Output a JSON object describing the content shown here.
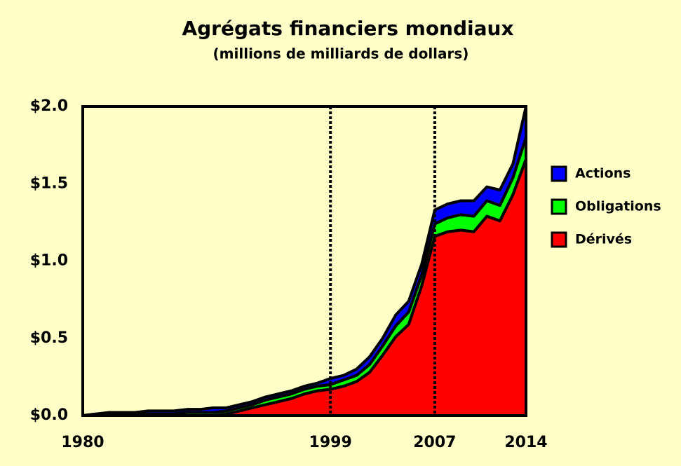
{
  "chart_data": {
    "type": "stacked-area",
    "title": "Agrégats financiers mondiaux",
    "subtitle": "(millions de milliards de dollars)",
    "x": [
      1980,
      1981,
      1982,
      1983,
      1984,
      1985,
      1986,
      1987,
      1988,
      1989,
      1990,
      1991,
      1992,
      1993,
      1994,
      1995,
      1996,
      1997,
      1998,
      1999,
      2000,
      2001,
      2002,
      2003,
      2004,
      2005,
      2006,
      2007,
      2008,
      2009,
      2010,
      2011,
      2012,
      2013,
      2014
    ],
    "series": [
      {
        "name": "Dérivés",
        "color": "#ff0000",
        "values": [
          0,
          0,
          0,
          0,
          0,
          0,
          0,
          0,
          0,
          0,
          0,
          0.01,
          0.03,
          0.05,
          0.07,
          0.09,
          0.11,
          0.14,
          0.16,
          0.17,
          0.19,
          0.22,
          0.28,
          0.39,
          0.51,
          0.59,
          0.84,
          1.16,
          1.19,
          1.2,
          1.19,
          1.29,
          1.26,
          1.43,
          1.66
        ]
      },
      {
        "name": "Obligations",
        "color": "#00ff00",
        "values": [
          0,
          0.01,
          0.01,
          0.01,
          0.01,
          0.01,
          0.01,
          0.01,
          0.02,
          0.02,
          0.02,
          0.02,
          0.02,
          0.02,
          0.03,
          0.03,
          0.03,
          0.03,
          0.03,
          0.03,
          0.04,
          0.04,
          0.05,
          0.06,
          0.07,
          0.08,
          0.07,
          0.08,
          0.09,
          0.1,
          0.1,
          0.1,
          0.1,
          0.11,
          0.14
        ]
      },
      {
        "name": "Actions",
        "color": "#0000ff",
        "values": [
          0,
          0,
          0.01,
          0.01,
          0.01,
          0.02,
          0.02,
          0.02,
          0.02,
          0.02,
          0.03,
          0.02,
          0.02,
          0.02,
          0.02,
          0.02,
          0.02,
          0.02,
          0.02,
          0.04,
          0.03,
          0.04,
          0.05,
          0.05,
          0.07,
          0.07,
          0.07,
          0.09,
          0.09,
          0.09,
          0.1,
          0.09,
          0.1,
          0.09,
          0.2
        ]
      }
    ],
    "xlim": [
      1980,
      2014
    ],
    "xticks": [
      1980,
      1999,
      2007,
      2014
    ],
    "ylim": [
      0,
      2
    ],
    "yticks": [
      {
        "value": 0,
        "label": "$0.0"
      },
      {
        "value": 0.5,
        "label": "$0.5"
      },
      {
        "value": 1,
        "label": "$1.0"
      },
      {
        "value": 1.5,
        "label": "$1.5"
      },
      {
        "value": 2,
        "label": "$2.0"
      }
    ],
    "vlines": [
      1999,
      2007
    ]
  }
}
